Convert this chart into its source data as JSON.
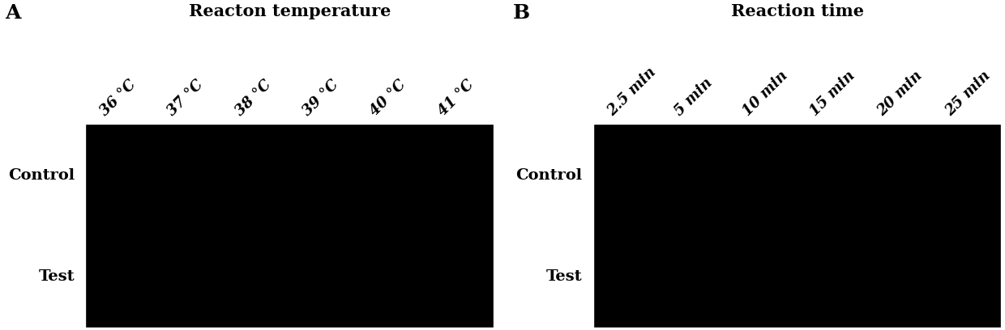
{
  "panel_A": {
    "label": "A",
    "title": "Reacton temperature",
    "col_labels": [
      "36 °C",
      "37 °C",
      "38 °C",
      "39 °C",
      "40 °C",
      "41 °C"
    ],
    "row_labels": [
      "Control",
      "Test"
    ],
    "box_color": "#000000"
  },
  "panel_B": {
    "label": "B",
    "title": "Reaction time",
    "col_labels": [
      "2.5 min",
      "5 min",
      "10 min",
      "15 min",
      "20 min",
      "25 min"
    ],
    "row_labels": [
      "Control",
      "Test"
    ],
    "box_color": "#000000"
  },
  "bg_color": "#ffffff",
  "text_color": "#000000",
  "title_fontsize": 15,
  "row_label_fontsize": 14,
  "col_label_fontsize": 13,
  "panel_label_fontsize": 18,
  "label_rotation": 45
}
